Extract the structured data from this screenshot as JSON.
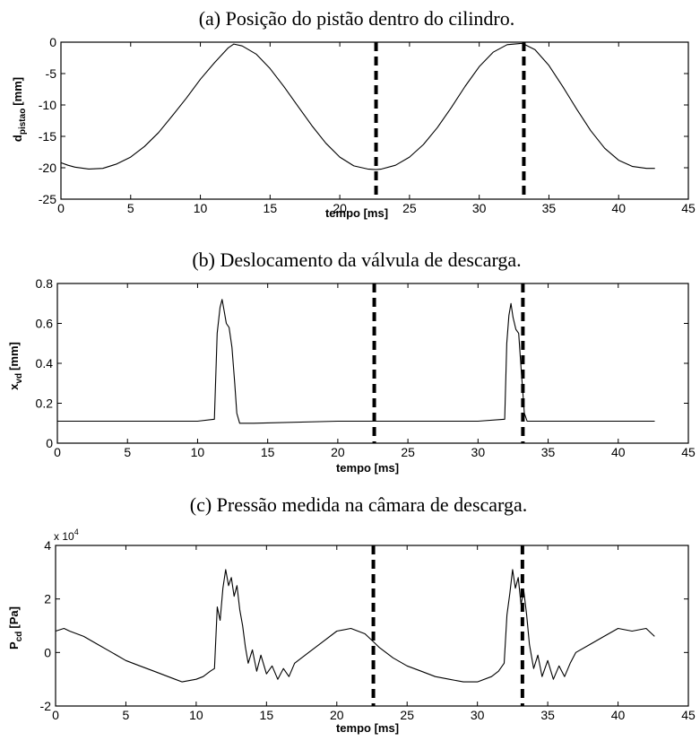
{
  "chart_data": [
    {
      "type": "line",
      "title": "(a) Posição do pistão dentro do cilindro.",
      "xlabel": "tempo [ms]",
      "ylabel_main": "d",
      "ylabel_sub": "pistao",
      "ylabel_unit": "[mm]",
      "xlim": [
        0,
        45
      ],
      "ylim": [
        -25,
        0
      ],
      "xticks": [
        0,
        5,
        10,
        15,
        20,
        25,
        30,
        35,
        40,
        45
      ],
      "yticks": [
        0,
        -5,
        -10,
        -15,
        -20,
        -25
      ],
      "series": [
        {
          "x": [
            0,
            0.5,
            1,
            2,
            3,
            4,
            5,
            6,
            7,
            8,
            9,
            10,
            11,
            12,
            12.4,
            13,
            14,
            15,
            16,
            17,
            18,
            19,
            20,
            21,
            22,
            22.6,
            23,
            24,
            25,
            26,
            27,
            28,
            29,
            30,
            31,
            32,
            33,
            33.2,
            34,
            35,
            36,
            37,
            38,
            39,
            40,
            41,
            42,
            42.6
          ],
          "y": [
            -19.2,
            -19.6,
            -19.9,
            -20.2,
            -20.1,
            -19.4,
            -18.3,
            -16.6,
            -14.4,
            -11.7,
            -8.9,
            -5.9,
            -3.3,
            -0.9,
            -0.3,
            -0.6,
            -1.9,
            -4.2,
            -7.1,
            -10.2,
            -13.3,
            -16.1,
            -18.3,
            -19.7,
            -20.2,
            -20.3,
            -20.2,
            -19.6,
            -18.3,
            -16.3,
            -13.6,
            -10.4,
            -7.0,
            -3.9,
            -1.6,
            -0.4,
            -0.2,
            -0.3,
            -1.2,
            -3.7,
            -7.1,
            -10.7,
            -14.1,
            -16.9,
            -18.8,
            -19.8,
            -20.1,
            -20.1
          ]
        }
      ],
      "vlines": [
        22.6,
        33.2
      ]
    },
    {
      "type": "line",
      "title": "(b) Deslocamento da válvula de descarga.",
      "xlabel": "tempo [ms]",
      "ylabel_main": "x",
      "ylabel_sub": "vd",
      "ylabel_unit": "[mm]",
      "xlim": [
        0,
        45
      ],
      "ylim": [
        0,
        0.8
      ],
      "xticks": [
        0,
        5,
        10,
        15,
        20,
        25,
        30,
        35,
        40,
        45
      ],
      "yticks": [
        0,
        0.2,
        0.4,
        0.6,
        0.8
      ],
      "series": [
        {
          "x": [
            0,
            5,
            10,
            11.2,
            11.4,
            11.6,
            11.75,
            11.9,
            12.05,
            12.25,
            12.45,
            12.65,
            12.8,
            13.0,
            14,
            20,
            25,
            30,
            31.9,
            32.05,
            32.2,
            32.35,
            32.5,
            32.7,
            32.9,
            33.05,
            33.3,
            33.5,
            35,
            40,
            42.6
          ],
          "y": [
            0.11,
            0.11,
            0.11,
            0.12,
            0.55,
            0.68,
            0.72,
            0.66,
            0.6,
            0.58,
            0.48,
            0.3,
            0.15,
            0.1,
            0.1,
            0.11,
            0.11,
            0.11,
            0.12,
            0.5,
            0.64,
            0.7,
            0.63,
            0.57,
            0.55,
            0.4,
            0.15,
            0.11,
            0.11,
            0.11,
            0.11
          ]
        }
      ],
      "vlines": [
        22.6,
        33.2
      ]
    },
    {
      "type": "line",
      "title": "(c) Pressão medida na câmara de descarga.",
      "xlabel": "tempo [ms]",
      "ylabel_main": "P",
      "ylabel_sub": "cd",
      "ylabel_unit": "[Pa]",
      "multiplier_base": "x 10",
      "multiplier_exp": "4",
      "xlim": [
        0,
        45
      ],
      "ylim": [
        -2,
        4
      ],
      "xticks": [
        0,
        5,
        10,
        15,
        20,
        25,
        30,
        35,
        40,
        45
      ],
      "yticks": [
        4,
        2,
        0,
        -2
      ],
      "series": [
        {
          "x": [
            0,
            0.6,
            1,
            2,
            3,
            4,
            5,
            6,
            7,
            8,
            8.5,
            9,
            10,
            10.5,
            11,
            11.3,
            11.5,
            11.7,
            11.9,
            12.1,
            12.3,
            12.5,
            12.7,
            12.9,
            13.1,
            13.3,
            13.5,
            13.7,
            14.0,
            14.3,
            14.6,
            15.0,
            15.4,
            15.8,
            16.2,
            16.6,
            17,
            18,
            19,
            20,
            21,
            22,
            22.6,
            23,
            24,
            25,
            26,
            27,
            28,
            29,
            30,
            31,
            31.5,
            31.9,
            32.1,
            32.3,
            32.5,
            32.7,
            32.9,
            33.1,
            33.3,
            33.5,
            33.7,
            34.0,
            34.3,
            34.6,
            35.0,
            35.4,
            35.8,
            36.2,
            36.6,
            37,
            38,
            39,
            40,
            41,
            42,
            42.6
          ],
          "y": [
            0.8,
            0.9,
            0.8,
            0.6,
            0.3,
            0.0,
            -0.3,
            -0.5,
            -0.7,
            -0.9,
            -1.0,
            -1.1,
            -1.0,
            -0.9,
            -0.7,
            -0.6,
            1.7,
            1.2,
            2.4,
            3.1,
            2.5,
            2.8,
            2.1,
            2.5,
            1.6,
            1.0,
            0.2,
            -0.4,
            0.1,
            -0.7,
            -0.1,
            -0.8,
            -0.5,
            -1.0,
            -0.6,
            -0.9,
            -0.4,
            0.0,
            0.4,
            0.8,
            0.9,
            0.7,
            0.4,
            0.2,
            -0.2,
            -0.5,
            -0.7,
            -0.9,
            -1.0,
            -1.1,
            -1.1,
            -0.9,
            -0.7,
            -0.4,
            1.4,
            2.2,
            3.1,
            2.4,
            2.8,
            1.8,
            2.3,
            1.4,
            0.3,
            -0.6,
            -0.1,
            -0.9,
            -0.3,
            -1.0,
            -0.5,
            -0.9,
            -0.4,
            0.0,
            0.3,
            0.6,
            0.9,
            0.8,
            0.9,
            0.6
          ]
        }
      ],
      "vlines": [
        22.6,
        33.2
      ]
    }
  ]
}
